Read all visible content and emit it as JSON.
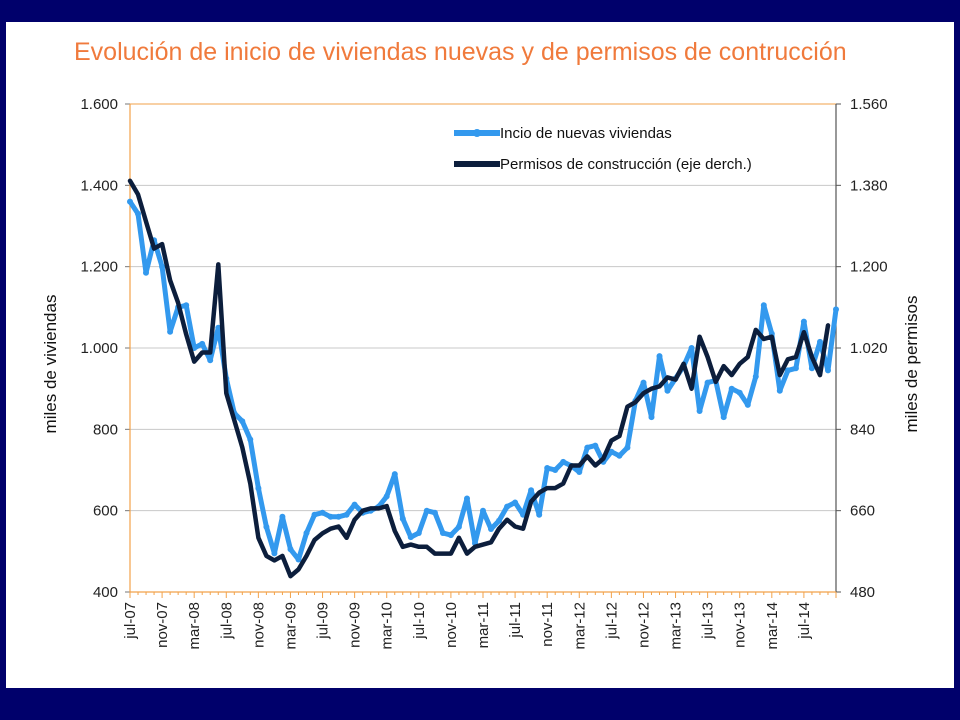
{
  "chart_data": {
    "type": "line",
    "title": "Evolución de inicio de viviendas nuevas y de permisos de contrucción",
    "y_left_label": "miles de viviendas",
    "y_right_label": "miles de permisos",
    "y_left_ticks": [
      "1.600",
      "1.400",
      "1.200",
      "1.000",
      "800",
      "600",
      "400"
    ],
    "y_right_ticks": [
      "1.560",
      "1.380",
      "1.200",
      "1.020",
      "840",
      "660",
      "480"
    ],
    "y_left_range": [
      400,
      1600
    ],
    "y_right_range": [
      480,
      1560
    ],
    "x_tick_labels": [
      "jul-07",
      "nov-07",
      "mar-08",
      "jul-08",
      "nov-08",
      "mar-09",
      "jul-09",
      "nov-09",
      "mar-10",
      "jul-10",
      "nov-10",
      "mar-11",
      "jul-11",
      "nov-11",
      "mar-12",
      "jul-12",
      "nov-12",
      "mar-13",
      "jul-13",
      "nov-13",
      "mar-14",
      "jul-14"
    ],
    "grid": "horizontal",
    "legend_position": "top-right",
    "series": [
      {
        "name": "Incio de  nuevas viviendas",
        "axis": "left",
        "color": "#3399ee",
        "values": [
          1360,
          1330,
          1185,
          1265,
          1200,
          1040,
          1100,
          1105,
          1000,
          1010,
          970,
          1050,
          925,
          840,
          820,
          775,
          655,
          560,
          495,
          585,
          505,
          480,
          545,
          590,
          595,
          585,
          585,
          590,
          615,
          595,
          600,
          610,
          635,
          690,
          580,
          535,
          545,
          600,
          595,
          545,
          540,
          560,
          630,
          520,
          600,
          555,
          575,
          610,
          620,
          590,
          650,
          590,
          705,
          700,
          720,
          710,
          695,
          755,
          760,
          720,
          745,
          735,
          755,
          870,
          915,
          830,
          980,
          895,
          925,
          955,
          1000,
          845,
          915,
          920,
          830,
          900,
          890,
          860,
          930,
          1105,
          1035,
          895,
          945,
          950,
          1065,
          950,
          1015,
          945,
          1095
        ]
      },
      {
        "name": "Permisos de construcción (eje derch.)",
        "axis": "right",
        "color": "#0c1e3c",
        "values": [
          1390,
          1360,
          1300,
          1240,
          1250,
          1170,
          1120,
          1050,
          990,
          1010,
          1010,
          1205,
          920,
          860,
          800,
          720,
          600,
          560,
          550,
          560,
          515,
          530,
          560,
          595,
          610,
          620,
          625,
          600,
          640,
          660,
          665,
          665,
          670,
          615,
          580,
          585,
          580,
          580,
          565,
          565,
          565,
          600,
          565,
          580,
          585,
          590,
          620,
          640,
          625,
          620,
          680,
          700,
          710,
          710,
          720,
          760,
          760,
          780,
          760,
          775,
          815,
          825,
          890,
          900,
          920,
          930,
          935,
          955,
          950,
          985,
          930,
          1045,
          1000,
          945,
          980,
          960,
          985,
          1000,
          1060,
          1040,
          1045,
          960,
          995,
          1000,
          1055,
          1000,
          960,
          1070
        ]
      }
    ]
  }
}
